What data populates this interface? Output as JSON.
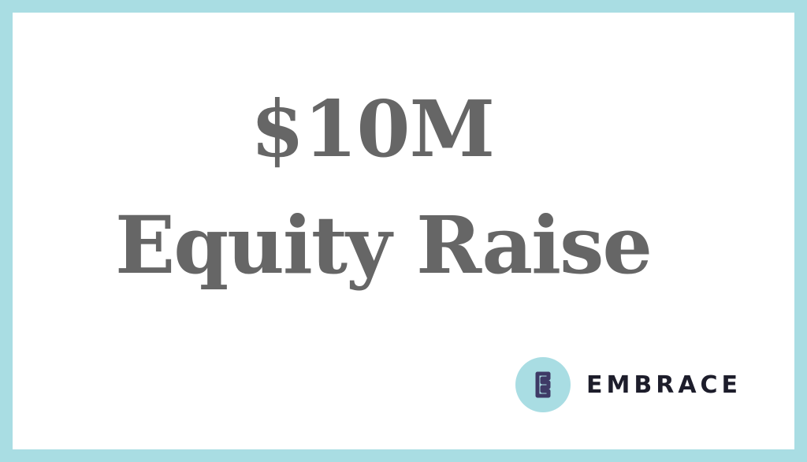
{
  "headline": {
    "line1": "$10M",
    "line2": "Equity Raise"
  },
  "brand": {
    "name": "EMBRACE",
    "icon": "embrace-logo-icon"
  },
  "colors": {
    "border": "#a9dde3",
    "headline_text": "#666666",
    "brand_text": "#1d1d2b",
    "logo_mark": "#3e3a66"
  }
}
